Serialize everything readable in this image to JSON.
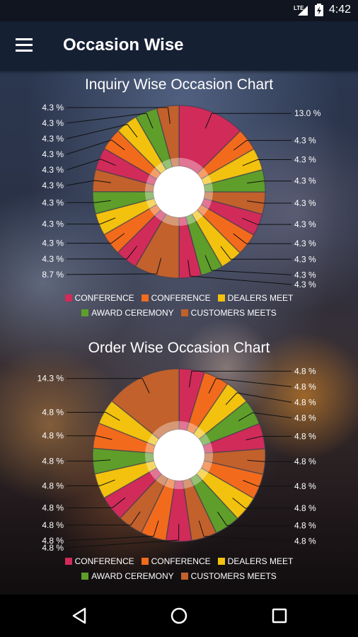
{
  "status": {
    "network": "LTE",
    "time": "4:42"
  },
  "appbar": {
    "title": "Occasion Wise"
  },
  "icons": {
    "menu": "hamburger-menu-icon",
    "back": "back-triangle-icon",
    "home": "home-circle-icon",
    "recents": "recents-square-icon",
    "signal": "signal-icon",
    "battery": "battery-icon"
  },
  "colors": {
    "appbar": "#162033",
    "statusbar": "#10151f",
    "conference_1": "#d12b5a",
    "conference_2": "#f26b1d",
    "dealers_meet": "#f2c20f",
    "award_ceremony": "#5f9e2a",
    "customers_meets": "#c2612c"
  },
  "legend": [
    {
      "label": "CONFERENCE",
      "color": "#d12b5a"
    },
    {
      "label": "CONFERENCE",
      "color": "#f26b1d"
    },
    {
      "label": "DEALERS MEET",
      "color": "#f2c20f"
    },
    {
      "label": "AWARD CEREMONY",
      "color": "#5f9e2a"
    },
    {
      "label": "CUSTOMERS MEETS",
      "color": "#c2612c"
    }
  ],
  "chart_data": [
    {
      "type": "pie",
      "title": "Inquiry Wise Occasion Chart",
      "values": [
        13.0,
        4.3,
        4.3,
        4.3,
        4.3,
        4.3,
        4.3,
        4.3,
        4.3,
        4.3,
        8.7,
        4.3,
        4.3,
        4.3,
        4.3,
        4.3,
        4.3,
        4.3,
        4.3,
        4.3,
        4.3
      ],
      "labels": [
        "13.0 %",
        "4.3 %",
        "4.3 %",
        "4.3 %",
        "4.3 %",
        "4.3 %",
        "4.3 %",
        "4.3 %",
        "4.3 %",
        "4.3 %",
        "8.7 %",
        "4.3 %",
        "4.3 %",
        "4.3 %",
        "4.3 %",
        "4.3 %",
        "4.3 %",
        "4.3 %",
        "4.3 %",
        "4.3 %",
        "4.3 %"
      ],
      "colors": [
        "#d12b5a",
        "#f26b1d",
        "#f2c20f",
        "#5f9e2a",
        "#c2612c",
        "#d12b5a",
        "#f26b1d",
        "#f2c20f",
        "#5f9e2a",
        "#d12b5a",
        "#c2612c",
        "#d12b5a",
        "#f26b1d",
        "#f2c20f",
        "#5f9e2a",
        "#c2612c",
        "#d12b5a",
        "#f26b1d",
        "#f2c20f",
        "#5f9e2a",
        "#c2612c"
      ],
      "legend": [
        "CONFERENCE",
        "CONFERENCE",
        "DEALERS MEET",
        "AWARD CEREMONY",
        "CUSTOMERS MEETS"
      ]
    },
    {
      "type": "pie",
      "title": "Order Wise Occasion Chart",
      "values": [
        4.8,
        4.8,
        4.8,
        4.8,
        4.8,
        4.8,
        4.8,
        4.8,
        4.8,
        4.8,
        4.8,
        4.8,
        4.8,
        4.8,
        4.8,
        4.8,
        4.8,
        4.8,
        14.3
      ],
      "labels": [
        "4.8 %",
        "4.8 %",
        "4.8 %",
        "4.8 %",
        "4.8 %",
        "4.8 %",
        "4.8 %",
        "4.8 %",
        "4.8 %",
        "4.8 %",
        "4.8 %",
        "4.8 %",
        "4.8 %",
        "4.8 %",
        "4.8 %",
        "4.8 %",
        "4.8 %",
        "4.8 %",
        "14.3 %"
      ],
      "colors": [
        "#d12b5a",
        "#f26b1d",
        "#f2c20f",
        "#5f9e2a",
        "#d12b5a",
        "#c2612c",
        "#f26b1d",
        "#f2c20f",
        "#5f9e2a",
        "#c2612c",
        "#d12b5a",
        "#f26b1d",
        "#c2612c",
        "#d12b5a",
        "#f2c20f",
        "#5f9e2a",
        "#f26b1d",
        "#f2c20f",
        "#c2612c"
      ],
      "legend": [
        "CONFERENCE",
        "CONFERENCE",
        "DEALERS MEET",
        "AWARD CEREMONY",
        "CUSTOMERS MEETS"
      ]
    }
  ]
}
